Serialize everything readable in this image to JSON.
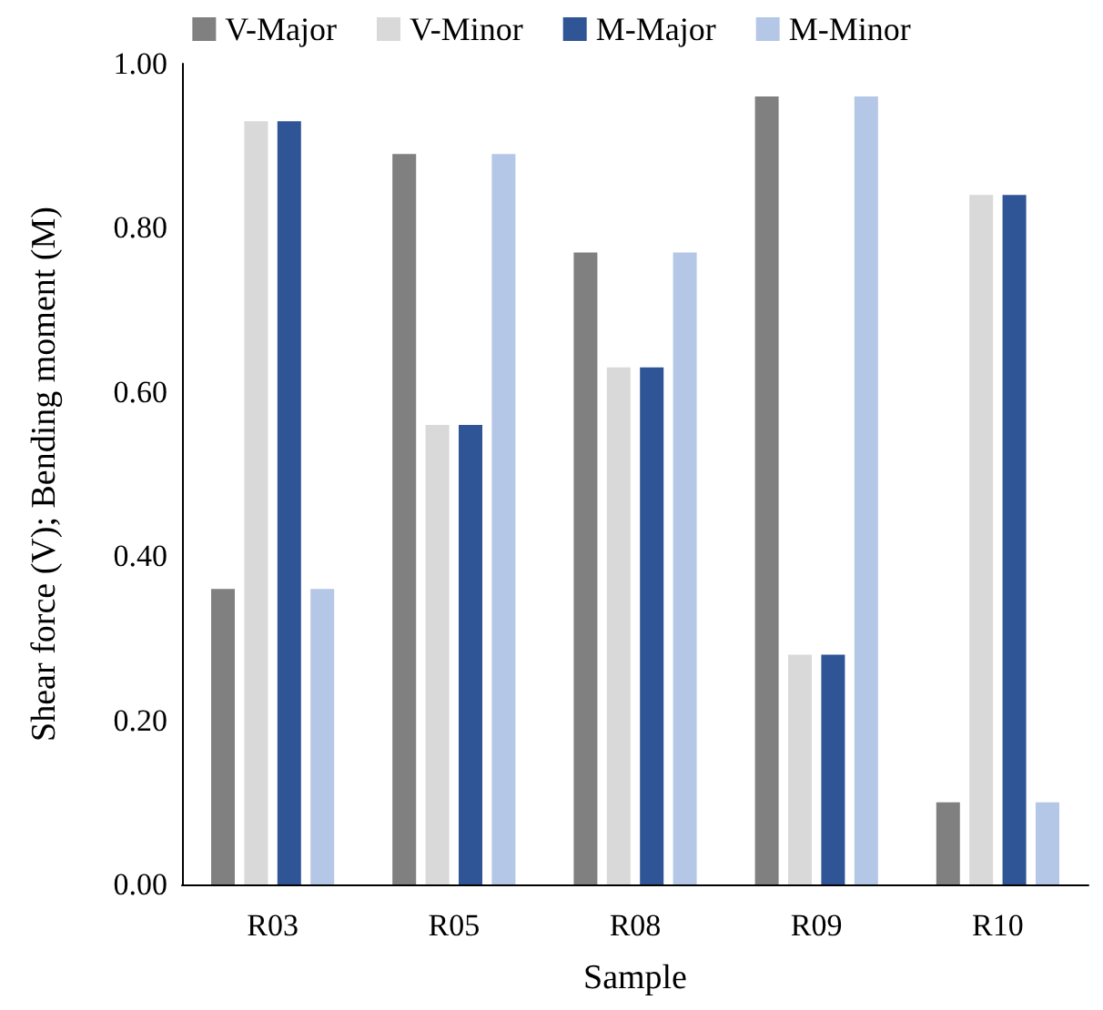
{
  "chart_data": {
    "type": "bar",
    "xlabel": "Sample",
    "ylabel": "Shear force (V); Bending moment (M)",
    "categories": [
      "R03",
      "R05",
      "R08",
      "R09",
      "R10"
    ],
    "series": [
      {
        "name": "V-Major",
        "color": "#808080",
        "values": [
          0.36,
          0.89,
          0.77,
          0.96,
          0.1
        ]
      },
      {
        "name": "V-Minor",
        "color": "#d9d9d9",
        "values": [
          0.93,
          0.56,
          0.63,
          0.28,
          0.84
        ]
      },
      {
        "name": "M-Major",
        "color": "#2f5597",
        "values": [
          0.93,
          0.56,
          0.63,
          0.28,
          0.84
        ]
      },
      {
        "name": "M-Minor",
        "color": "#b4c7e7",
        "values": [
          0.36,
          0.89,
          0.77,
          0.96,
          0.1
        ]
      }
    ],
    "ylim": [
      0,
      1
    ],
    "yticks": [
      {
        "value": 0,
        "label": "0.00"
      },
      {
        "value": 0.2,
        "label": "0.20"
      },
      {
        "value": 0.4,
        "label": "0.40"
      },
      {
        "value": 0.6,
        "label": "0.60"
      },
      {
        "value": 0.8,
        "label": "0.80"
      },
      {
        "value": 1,
        "label": "1.00"
      }
    ],
    "grid": false,
    "legend": "top"
  }
}
